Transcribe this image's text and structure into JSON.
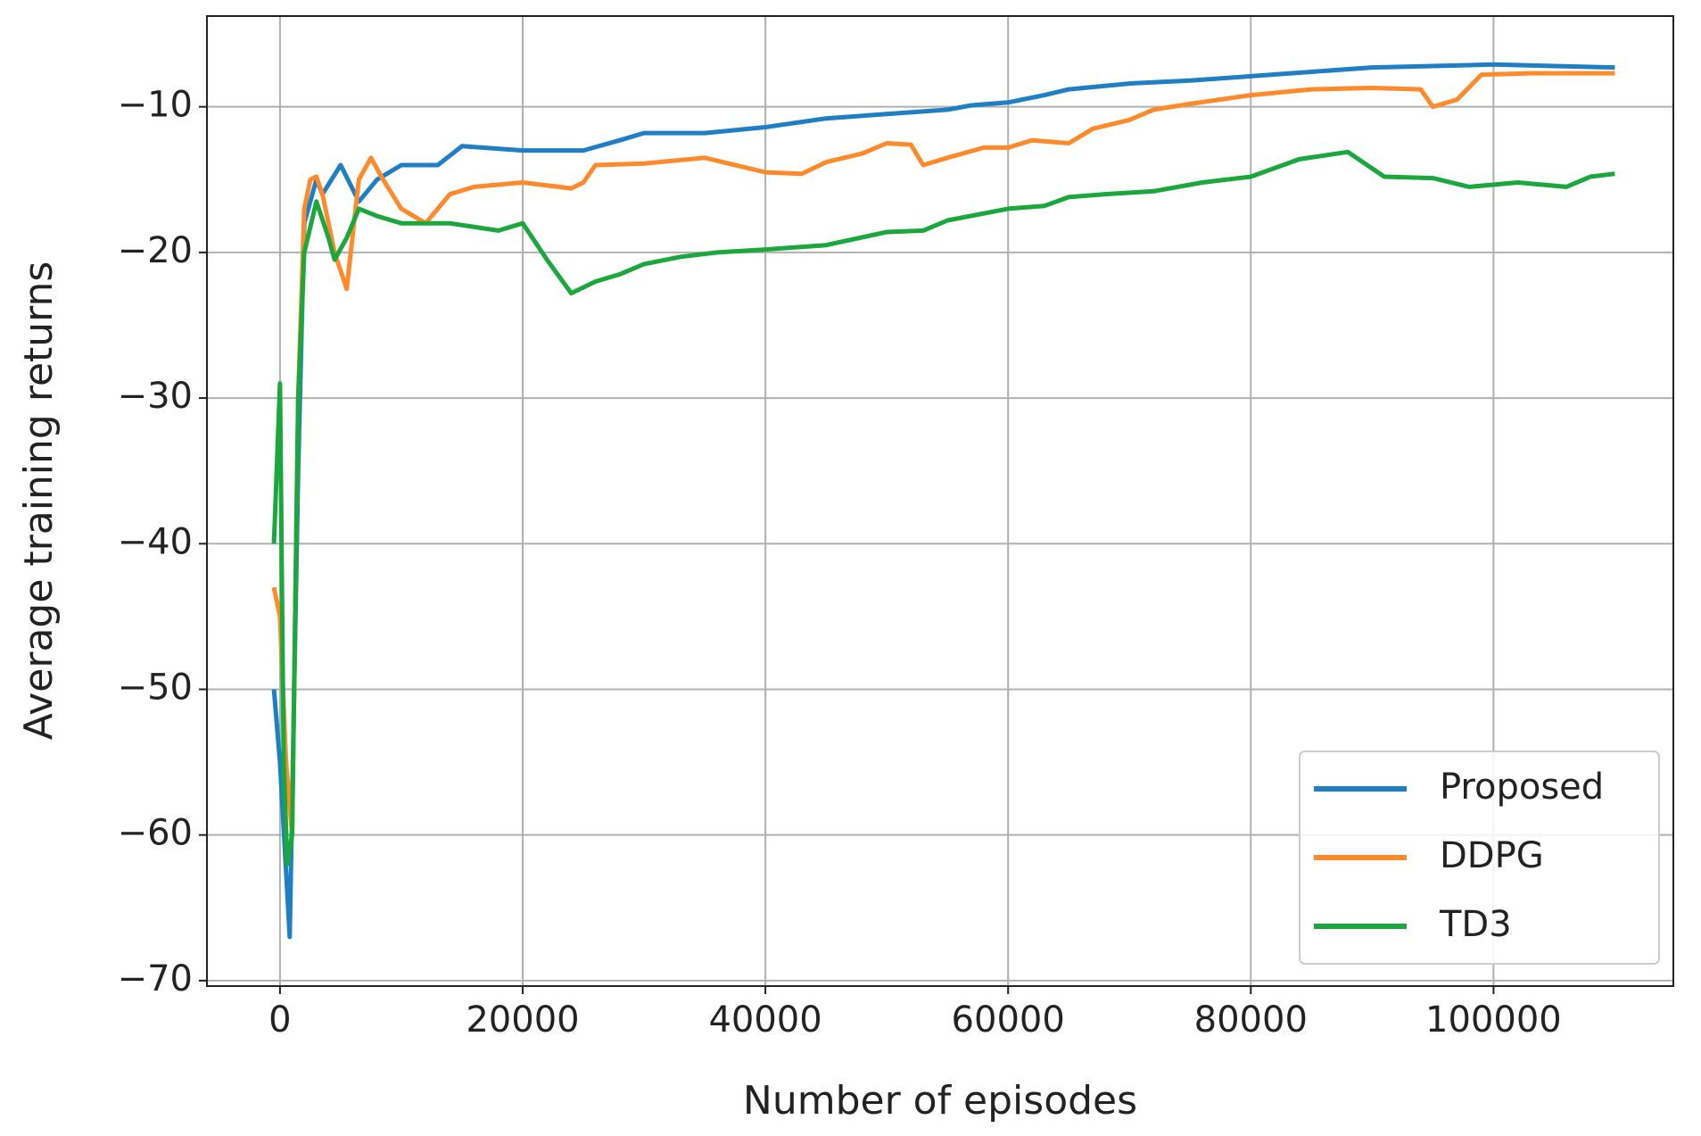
{
  "chart_data": {
    "type": "line",
    "xlabel": "Number of episodes",
    "ylabel": "Average training returns",
    "xlim": [
      -6020,
      114820
    ],
    "ylim": [
      -70.375,
      -3.77
    ],
    "xticks": [
      0,
      20000,
      40000,
      60000,
      80000,
      100000
    ],
    "yticks": [
      {
        "value": -70,
        "label": "−70"
      },
      {
        "value": -60,
        "label": "−60"
      },
      {
        "value": -50,
        "label": "−50"
      },
      {
        "value": -40,
        "label": "−40"
      },
      {
        "value": -30,
        "label": "−30"
      },
      {
        "value": -20,
        "label": "−20"
      },
      {
        "value": -10,
        "label": "−10"
      }
    ],
    "grid": true,
    "legend_loc": "lower right",
    "series": [
      {
        "name": "Proposed",
        "color": "#1f7fc4",
        "x": [
          -500,
          0,
          800,
          1500,
          2000,
          3000,
          3500,
          5000,
          6500,
          8000,
          10000,
          13000,
          15000,
          20000,
          25000,
          28000,
          30000,
          35000,
          40000,
          45000,
          50000,
          55000,
          57000,
          60000,
          63000,
          65000,
          70000,
          75000,
          80000,
          85000,
          90000,
          95000,
          100000,
          105000,
          110000
        ],
        "values": [
          -50,
          -55,
          -67,
          -35,
          -18,
          -15,
          -16,
          -14,
          -16.5,
          -15,
          -14,
          -14,
          -12.7,
          -13,
          -13,
          -12.3,
          -11.8,
          -11.8,
          -11.4,
          -10.8,
          -10.5,
          -10.2,
          -9.9,
          -9.7,
          -9.2,
          -8.8,
          -8.4,
          -8.2,
          -7.9,
          -7.6,
          -7.3,
          -7.2,
          -7.1,
          -7.2,
          -7.3
        ]
      },
      {
        "name": "DDPG",
        "color": "#ff8a2a",
        "x": [
          -500,
          0,
          500,
          1000,
          1500,
          2000,
          2500,
          3000,
          3500,
          4500,
          5500,
          6500,
          7500,
          8500,
          10000,
          12000,
          14000,
          16000,
          20000,
          24000,
          25000,
          26000,
          30000,
          35000,
          40000,
          43000,
          45000,
          48000,
          50000,
          52000,
          53000,
          55000,
          58000,
          60000,
          62000,
          65000,
          67000,
          70000,
          72000,
          75000,
          80000,
          85000,
          90000,
          94000,
          95000,
          97000,
          99000,
          103000,
          110000
        ],
        "values": [
          -43,
          -45,
          -55,
          -60,
          -30,
          -17,
          -15,
          -14.8,
          -16,
          -20,
          -22.5,
          -15,
          -13.5,
          -15,
          -17,
          -18,
          -16,
          -15.5,
          -15.2,
          -15.6,
          -15.2,
          -14,
          -13.9,
          -13.5,
          -14.5,
          -14.6,
          -13.8,
          -13.2,
          -12.5,
          -12.6,
          -14,
          -13.5,
          -12.8,
          -12.8,
          -12.3,
          -12.5,
          -11.5,
          -10.9,
          -10.2,
          -9.8,
          -9.2,
          -8.8,
          -8.7,
          -8.8,
          -10,
          -9.5,
          -7.8,
          -7.7,
          -7.7
        ]
      },
      {
        "name": "TD3",
        "color": "#1aa83c",
        "x": [
          -500,
          0,
          300,
          600,
          1000,
          1500,
          2000,
          3000,
          4000,
          4500,
          5500,
          6500,
          8000,
          10000,
          12000,
          14000,
          18000,
          20000,
          22000,
          24000,
          26000,
          28000,
          30000,
          33000,
          36000,
          40000,
          45000,
          50000,
          53000,
          55000,
          60000,
          63000,
          65000,
          68000,
          72000,
          76000,
          80000,
          84000,
          88000,
          91000,
          95000,
          98000,
          102000,
          106000,
          108000,
          110000
        ],
        "values": [
          -40,
          -29,
          -55,
          -62,
          -60,
          -30,
          -20,
          -16.5,
          -19,
          -20.5,
          -19,
          -17,
          -17.5,
          -18,
          -18,
          -18,
          -18.5,
          -18,
          -20.5,
          -22.8,
          -22,
          -21.5,
          -20.8,
          -20.3,
          -20,
          -19.8,
          -19.5,
          -18.6,
          -18.5,
          -17.8,
          -17,
          -16.8,
          -16.2,
          -16,
          -15.8,
          -15.2,
          -14.8,
          -13.6,
          -13.1,
          -14.8,
          -14.9,
          -15.5,
          -15.2,
          -15.5,
          -14.8,
          -14.6
        ]
      }
    ]
  }
}
